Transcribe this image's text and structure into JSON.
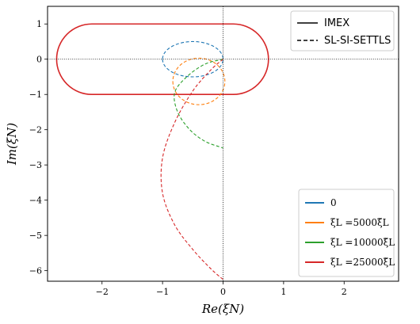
{
  "chart_data": {
    "type": "line",
    "title": "",
    "xlabel": "Re(ξN)",
    "ylabel": "Im(ξN)",
    "xlim": [
      -2.9,
      2.9
    ],
    "ylim": [
      -6.3,
      1.5
    ],
    "x_ticks": [
      -2,
      -1,
      0,
      1,
      2
    ],
    "y_ticks": [
      1,
      0,
      -1,
      -2,
      -3,
      -4,
      -5,
      -6
    ],
    "grid": false,
    "reference_lines": [
      {
        "orientation": "horizontal",
        "value": 0,
        "style": "dotted",
        "color": "#000000"
      },
      {
        "orientation": "vertical",
        "value": 0,
        "style": "dotted",
        "color": "#000000"
      }
    ],
    "style_legend": {
      "placement": "top-right",
      "entries": [
        {
          "label": "IMEX",
          "linestyle": "solid"
        },
        {
          "label": "SL-SI-SETTLS",
          "linestyle": "dashed"
        }
      ]
    },
    "color_legend": {
      "placement": "bottom-right",
      "entries": [
        {
          "label": "0",
          "color": "#1f77b4"
        },
        {
          "label": "ξL =5000ξ̃L",
          "color": "#ff7f0e"
        },
        {
          "label": "ξL =10000ξ̃L",
          "color": "#2ca02c"
        },
        {
          "label": "ξL =25000ξ̃L",
          "color": "#d62728"
        }
      ]
    },
    "series": [
      {
        "color": "#d62728",
        "linestyle": "solid",
        "shape": "stadium",
        "x_range": [
          -2.75,
          0.75
        ],
        "y_range": [
          -1.0,
          1.0
        ]
      },
      {
        "color": "#1f77b4",
        "linestyle": "dashed",
        "shape": "ellipse",
        "center": [
          -0.5,
          0.0
        ],
        "radii": [
          0.5,
          0.5
        ]
      },
      {
        "color": "#ff7f0e",
        "linestyle": "dashed",
        "shape": "ellipse",
        "center": [
          -0.4,
          -0.63
        ],
        "radii": [
          0.43,
          0.66
        ]
      },
      {
        "color": "#2ca02c",
        "linestyle": "dashed",
        "points": [
          [
            0,
            0
          ],
          [
            -0.3,
            -0.14
          ],
          [
            -0.6,
            -0.5
          ],
          [
            -0.8,
            -0.95
          ],
          [
            -0.75,
            -1.5
          ],
          [
            -0.55,
            -2.0
          ],
          [
            -0.3,
            -2.33
          ],
          [
            -0.05,
            -2.49
          ],
          [
            0,
            -2.52
          ]
        ]
      },
      {
        "color": "#d62728",
        "linestyle": "dashed",
        "points": [
          [
            0,
            0
          ],
          [
            -0.2,
            -0.3
          ],
          [
            -0.5,
            -0.9
          ],
          [
            -0.8,
            -1.8
          ],
          [
            -1.0,
            -2.8
          ],
          [
            -1.0,
            -3.8
          ],
          [
            -0.8,
            -4.7
          ],
          [
            -0.5,
            -5.4
          ],
          [
            -0.2,
            -5.95
          ],
          [
            0,
            -6.25
          ]
        ]
      }
    ]
  }
}
